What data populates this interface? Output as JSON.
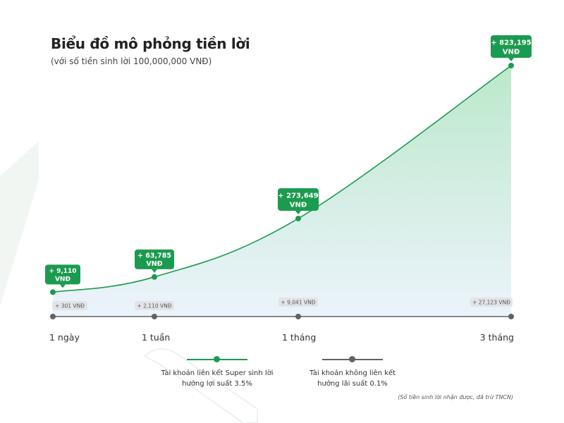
{
  "title": "Biểu đồ mô phỏng tiền lời",
  "subtitle": "(với số tiền sinh lời 100,000,000 VNĐ)",
  "note": "(Số tiền sinh lời nhận được, đã trừ TNCN)",
  "colors": {
    "linked": "#1b9b4f",
    "not_linked": "#5f6368",
    "label_gray": "#e2e4e7",
    "area_top": "#b7e7c8",
    "area_bottom": "#eaf2fb"
  },
  "legend": {
    "linked": "Tài khoản liên kết Super sinh lời\nhưởng lợi suất 3.5%",
    "not_linked": "Tài khoản không liên kết\nhưởng lãi suất 0.1%"
  },
  "chart_data": {
    "type": "line",
    "categories": [
      "1 ngày",
      "1 tuần",
      "1 tháng",
      "3 tháng"
    ],
    "series": [
      {
        "name": "Tài khoản liên kết Super sinh lời hưởng lợi suất 3.5%",
        "values": [
          9110,
          63785,
          273649,
          823195
        ],
        "labels": [
          "+ 9,110\nVNĐ",
          "+ 63,785\nVNĐ",
          "+ 273,649\nVNĐ",
          "+ 823,195\nVNĐ"
        ]
      },
      {
        "name": "Tài khoản không liên kết hưởng lãi suất 0.1%",
        "values": [
          301,
          2110,
          9041,
          27123
        ],
        "labels": [
          "+ 301 VNĐ",
          "+ 2,110 VNĐ",
          "+ 9,041 VNĐ",
          "+ 27,123 VNĐ"
        ]
      }
    ],
    "area_fill": true,
    "grid": false
  }
}
